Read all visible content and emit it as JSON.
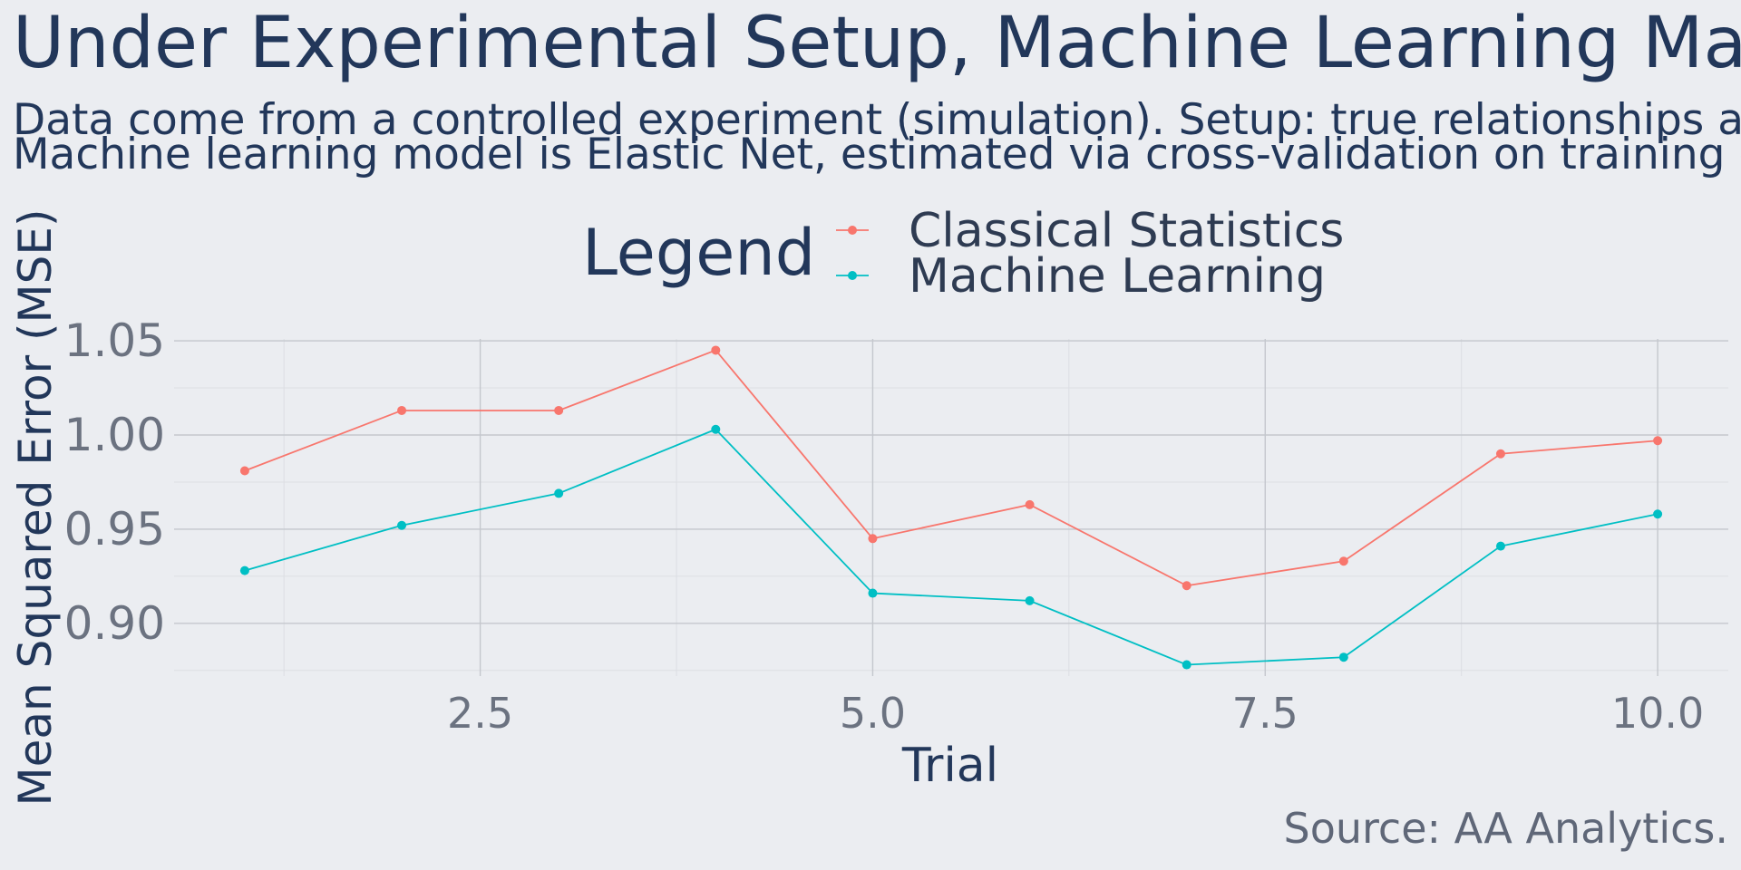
{
  "chart_data": {
    "type": "line",
    "title": "Under Experimental Setup, Machine Learning Makes Better Predictions",
    "subtitle_lines": [
      "Data come from a controlled experiment (simulation). Setup: true relationships are linear and noise is normally distributed.",
      "Machine learning model is Elastic Net, estimated via cross-validation on training data and evaluated on test data."
    ],
    "xlabel": "Trial",
    "ylabel": "Mean Squared Error (MSE)",
    "caption": "Source: AA Analytics.",
    "legend_title": "Legend",
    "legend_position": "top",
    "x": [
      1,
      2,
      3,
      4,
      5,
      6,
      7,
      8,
      9,
      10
    ],
    "series": [
      {
        "name": "Classical Statistics",
        "color": "#f8766d",
        "values": [
          0.981,
          1.013,
          1.013,
          1.045,
          0.945,
          0.963,
          0.92,
          0.933,
          0.99,
          0.997
        ]
      },
      {
        "name": "Machine Learning",
        "color": "#00bfc4",
        "values": [
          0.928,
          0.952,
          0.969,
          1.003,
          0.916,
          0.912,
          0.878,
          0.882,
          0.941,
          0.958
        ]
      }
    ],
    "xlim": [
      0.55,
      10.45
    ],
    "ylim": [
      0.872,
      1.051
    ],
    "x_major_ticks": [
      2.5,
      5.0,
      7.5,
      10.0
    ],
    "x_tick_labels": [
      "2.5",
      "5.0",
      "7.5",
      "10.0"
    ],
    "y_major_ticks": [
      0.9,
      0.95,
      1.0,
      1.05
    ],
    "y_tick_labels": [
      "0.90",
      "0.95",
      "1.00",
      "1.05"
    ],
    "grid": true
  }
}
